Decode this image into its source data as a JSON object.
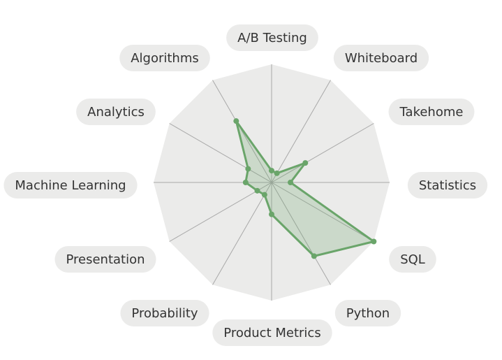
{
  "chart_data": {
    "type": "radar",
    "categories": [
      "A/B Testing",
      "Whiteboard",
      "Takehome",
      "Statistics",
      "SQL",
      "Python",
      "Product Metrics",
      "Probability",
      "Presentation",
      "Machine Learning",
      "Analytics",
      "Algorithms"
    ],
    "values": [
      10,
      9,
      33,
      16,
      100,
      72,
      27,
      12,
      14,
      22,
      23,
      60
    ],
    "color": "#6aa56a",
    "rlim": [
      0,
      100
    ],
    "grid": true
  }
}
